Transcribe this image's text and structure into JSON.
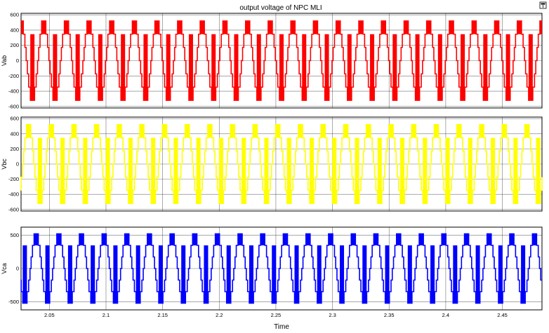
{
  "window": {
    "title": "output voltage of NPC MLI",
    "corner_icon": "dock-icon"
  },
  "chart_data": [
    {
      "type": "line",
      "title": "output voltage of NPC MLI",
      "ylabel": "Vab",
      "xlabel": "",
      "color": "#ff0000",
      "xlim": [
        2.025,
        2.485
      ],
      "ylim": [
        -620,
        620
      ],
      "yticks": [
        600,
        400,
        200,
        0,
        -200,
        -400,
        -600
      ],
      "xticks": [
        2.05,
        2.1,
        2.15,
        2.2,
        2.25,
        2.3,
        2.35,
        2.4,
        2.45
      ],
      "xticklabels": [],
      "grid": true,
      "waveform": {
        "amplitude": 520,
        "frequency_hz": 50,
        "phase_deg": 0
      }
    },
    {
      "type": "line",
      "title": "",
      "ylabel": "Vbc",
      "xlabel": "",
      "color": "#ffff00",
      "xlim": [
        2.025,
        2.485
      ],
      "ylim": [
        -620,
        620
      ],
      "yticks": [
        600,
        400,
        200,
        0,
        -200,
        -400,
        -600
      ],
      "xticks": [
        2.05,
        2.1,
        2.15,
        2.2,
        2.25,
        2.3,
        2.35,
        2.4,
        2.45
      ],
      "xticklabels": [],
      "grid": true,
      "waveform": {
        "amplitude": 520,
        "frequency_hz": 50,
        "phase_deg": -120
      }
    },
    {
      "type": "line",
      "title": "",
      "ylabel": "Vca",
      "xlabel": "Time",
      "color": "#0000ff",
      "xlim": [
        2.025,
        2.485
      ],
      "ylim": [
        -620,
        620
      ],
      "yticks": [
        500,
        0,
        -500
      ],
      "xticks": [
        2.05,
        2.1,
        2.15,
        2.2,
        2.25,
        2.3,
        2.35,
        2.4,
        2.45
      ],
      "xticklabels": [
        "2.05",
        "2.1",
        "2.15",
        "2.2",
        "2.25",
        "2.3",
        "2.35",
        "2.4",
        "2.45"
      ],
      "grid": true,
      "waveform": {
        "amplitude": 520,
        "frequency_hz": 50,
        "phase_deg": 120
      }
    }
  ]
}
